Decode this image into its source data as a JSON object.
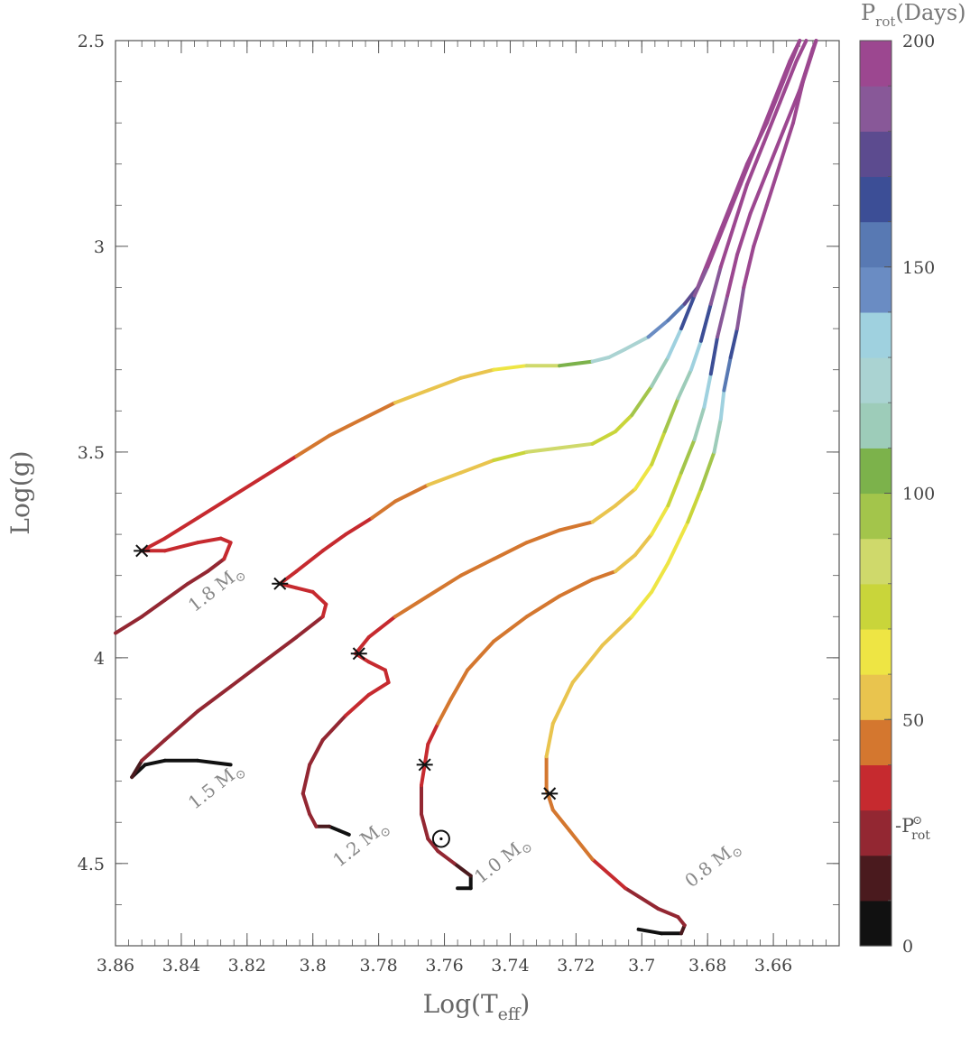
{
  "chart_data": {
    "type": "line",
    "title": "",
    "xlabel": "Log(T",
    "xlabel_sub": "eff",
    "xlabel_close": ")",
    "ylabel": "Log(g)",
    "xlim": [
      3.86,
      3.64
    ],
    "ylim": [
      2.5,
      4.7
    ],
    "x_ticks": [
      3.86,
      3.84,
      3.82,
      3.8,
      3.78,
      3.76,
      3.74,
      3.72,
      3.7,
      3.68,
      3.66
    ],
    "x_tick_labels": [
      "3.86",
      "3.84",
      "3.82",
      "3.8",
      "3.78",
      "3.76",
      "3.74",
      "3.72",
      "3.7",
      "3.68",
      "3.66"
    ],
    "y_ticks": [
      2.5,
      3,
      3.5,
      4,
      4.5
    ],
    "y_tick_labels": [
      "2.5",
      "3",
      "3.5",
      "4",
      "4.5"
    ],
    "colorbar": {
      "title": "P",
      "title_sub": "rot",
      "title_rest": "(Days)",
      "range": [
        0,
        200
      ],
      "ticks": [
        0,
        50,
        100,
        150,
        200
      ],
      "tick_labels": [
        "0",
        "50",
        "100",
        "150",
        "200"
      ],
      "colors": [
        "#111111",
        "#4a1a1e",
        "#932732",
        "#c62a2f",
        "#d4772f",
        "#e9c44e",
        "#eee544",
        "#c9d53a",
        "#cfd96b",
        "#a3c54b",
        "#7cb24b",
        "#9dccb9",
        "#aad3d2",
        "#9fd1df",
        "#6a8cc3",
        "#5879b3",
        "#3c4e96",
        "#5c4b8f",
        "#885898",
        "#9c4790"
      ],
      "solar_marker_value": 25,
      "solar_marker_label": "-P",
      "solar_marker_sub": "rot",
      "solar_marker_sup": "⊙"
    },
    "series": [
      {
        "name": "1.8 M☉",
        "label": "1.8 M",
        "points": [
          [
            3.86,
            3.94,
            20
          ],
          [
            3.852,
            3.9,
            20
          ],
          [
            3.845,
            3.86,
            22
          ],
          [
            3.838,
            3.82,
            25
          ],
          [
            3.832,
            3.79,
            28
          ],
          [
            3.827,
            3.76,
            30
          ],
          [
            3.825,
            3.72,
            30
          ],
          [
            3.828,
            3.71,
            30
          ],
          [
            3.835,
            3.72,
            30
          ],
          [
            3.845,
            3.74,
            30
          ],
          [
            3.852,
            3.74,
            30
          ],
          [
            3.845,
            3.71,
            30
          ],
          [
            3.835,
            3.66,
            30
          ],
          [
            3.825,
            3.61,
            30
          ],
          [
            3.815,
            3.56,
            30
          ],
          [
            3.805,
            3.51,
            40
          ],
          [
            3.795,
            3.46,
            40
          ],
          [
            3.785,
            3.42,
            42
          ],
          [
            3.775,
            3.38,
            50
          ],
          [
            3.765,
            3.35,
            55
          ],
          [
            3.755,
            3.32,
            58
          ],
          [
            3.745,
            3.3,
            60
          ],
          [
            3.735,
            3.29,
            78
          ],
          [
            3.725,
            3.29,
            82
          ],
          [
            3.715,
            3.28,
            120
          ],
          [
            3.71,
            3.27,
            120
          ],
          [
            3.705,
            3.25,
            120
          ],
          [
            3.698,
            3.22,
            135
          ],
          [
            3.692,
            3.18,
            150
          ],
          [
            3.687,
            3.14,
            165
          ],
          [
            3.683,
            3.1,
            185
          ],
          [
            3.678,
            3.0,
            200
          ],
          [
            3.673,
            2.9,
            200
          ],
          [
            3.668,
            2.8,
            200
          ],
          [
            3.662,
            2.7,
            200
          ],
          [
            3.657,
            2.6,
            200
          ],
          [
            3.652,
            2.5,
            200
          ]
        ]
      },
      {
        "name": "1.5 M☉",
        "label": "1.5 M",
        "points": [
          [
            3.825,
            4.26,
            0
          ],
          [
            3.835,
            4.25,
            0
          ],
          [
            3.845,
            4.25,
            0
          ],
          [
            3.851,
            4.26,
            0
          ],
          [
            3.855,
            4.29,
            0
          ],
          [
            3.852,
            4.25,
            22
          ],
          [
            3.845,
            4.2,
            22
          ],
          [
            3.835,
            4.13,
            22
          ],
          [
            3.825,
            4.07,
            23
          ],
          [
            3.815,
            4.01,
            25
          ],
          [
            3.805,
            3.95,
            28
          ],
          [
            3.797,
            3.9,
            30
          ],
          [
            3.796,
            3.87,
            30
          ],
          [
            3.8,
            3.84,
            30
          ],
          [
            3.805,
            3.83,
            30
          ],
          [
            3.81,
            3.82,
            30
          ],
          [
            3.805,
            3.79,
            30
          ],
          [
            3.797,
            3.74,
            30
          ],
          [
            3.79,
            3.7,
            35
          ],
          [
            3.782,
            3.66,
            40
          ],
          [
            3.775,
            3.62,
            42
          ],
          [
            3.765,
            3.58,
            45
          ],
          [
            3.755,
            3.55,
            55
          ],
          [
            3.745,
            3.52,
            60
          ],
          [
            3.735,
            3.5,
            80
          ],
          [
            3.725,
            3.49,
            85
          ],
          [
            3.715,
            3.48,
            85
          ],
          [
            3.708,
            3.45,
            60
          ],
          [
            3.703,
            3.41,
            80
          ],
          [
            3.697,
            3.34,
            100
          ],
          [
            3.692,
            3.27,
            125
          ],
          [
            3.688,
            3.2,
            150
          ],
          [
            3.684,
            3.12,
            175
          ],
          [
            3.68,
            3.05,
            200
          ],
          [
            3.675,
            2.95,
            200
          ],
          [
            3.67,
            2.85,
            200
          ],
          [
            3.665,
            2.75,
            200
          ],
          [
            3.66,
            2.65,
            200
          ],
          [
            3.655,
            2.55,
            200
          ],
          [
            3.652,
            2.5,
            200
          ]
        ]
      },
      {
        "name": "1.2 M☉",
        "label": "1.2 M",
        "points": [
          [
            3.789,
            4.43,
            0
          ],
          [
            3.792,
            4.42,
            0
          ],
          [
            3.795,
            4.41,
            0
          ],
          [
            3.799,
            4.41,
            20
          ],
          [
            3.801,
            4.38,
            20
          ],
          [
            3.803,
            4.33,
            22
          ],
          [
            3.801,
            4.26,
            25
          ],
          [
            3.797,
            4.2,
            28
          ],
          [
            3.79,
            4.14,
            30
          ],
          [
            3.783,
            4.09,
            30
          ],
          [
            3.777,
            4.06,
            30
          ],
          [
            3.778,
            4.03,
            30
          ],
          [
            3.783,
            4.01,
            30
          ],
          [
            3.787,
            3.99,
            30
          ],
          [
            3.783,
            3.95,
            35
          ],
          [
            3.775,
            3.9,
            40
          ],
          [
            3.765,
            3.85,
            42
          ],
          [
            3.755,
            3.8,
            45
          ],
          [
            3.745,
            3.76,
            45
          ],
          [
            3.735,
            3.72,
            45
          ],
          [
            3.725,
            3.69,
            45
          ],
          [
            3.715,
            3.67,
            48
          ],
          [
            3.708,
            3.63,
            55
          ],
          [
            3.702,
            3.59,
            58
          ],
          [
            3.697,
            3.53,
            65
          ],
          [
            3.693,
            3.45,
            80
          ],
          [
            3.689,
            3.37,
            100
          ],
          [
            3.685,
            3.3,
            125
          ],
          [
            3.682,
            3.23,
            150
          ],
          [
            3.679,
            3.14,
            175
          ],
          [
            3.676,
            3.05,
            200
          ],
          [
            3.672,
            2.95,
            200
          ],
          [
            3.668,
            2.85,
            200
          ],
          [
            3.663,
            2.75,
            200
          ],
          [
            3.658,
            2.65,
            200
          ],
          [
            3.653,
            2.55,
            200
          ],
          [
            3.65,
            2.5,
            200
          ]
        ]
      },
      {
        "name": "1.0 M☉",
        "label": "1.0 M",
        "points": [
          [
            3.756,
            4.56,
            0
          ],
          [
            3.752,
            4.56,
            0
          ],
          [
            3.752,
            4.53,
            0
          ],
          [
            3.757,
            4.5,
            20
          ],
          [
            3.762,
            4.47,
            22
          ],
          [
            3.765,
            4.44,
            25
          ],
          [
            3.767,
            4.38,
            28
          ],
          [
            3.767,
            4.31,
            30
          ],
          [
            3.766,
            4.26,
            30
          ],
          [
            3.765,
            4.21,
            30
          ],
          [
            3.762,
            4.16,
            40
          ],
          [
            3.758,
            4.1,
            42
          ],
          [
            3.753,
            4.03,
            45
          ],
          [
            3.745,
            3.96,
            45
          ],
          [
            3.735,
            3.9,
            45
          ],
          [
            3.725,
            3.85,
            45
          ],
          [
            3.715,
            3.81,
            45
          ],
          [
            3.708,
            3.79,
            45
          ],
          [
            3.702,
            3.75,
            55
          ],
          [
            3.697,
            3.7,
            60
          ],
          [
            3.692,
            3.63,
            68
          ],
          [
            3.688,
            3.55,
            80
          ],
          [
            3.684,
            3.47,
            100
          ],
          [
            3.681,
            3.39,
            120
          ],
          [
            3.679,
            3.31,
            150
          ],
          [
            3.677,
            3.22,
            175
          ],
          [
            3.674,
            3.12,
            200
          ],
          [
            3.671,
            3.02,
            200
          ],
          [
            3.667,
            2.92,
            200
          ],
          [
            3.662,
            2.82,
            200
          ],
          [
            3.657,
            2.72,
            200
          ],
          [
            3.652,
            2.62,
            200
          ],
          [
            3.648,
            2.52,
            200
          ],
          [
            3.647,
            2.5,
            200
          ]
        ]
      },
      {
        "name": "0.8 M☉",
        "label": "0.8 M",
        "points": [
          [
            3.701,
            4.66,
            0
          ],
          [
            3.694,
            4.67,
            0
          ],
          [
            3.688,
            4.67,
            0
          ],
          [
            3.687,
            4.65,
            20
          ],
          [
            3.689,
            4.63,
            22
          ],
          [
            3.695,
            4.61,
            25
          ],
          [
            3.705,
            4.56,
            30
          ],
          [
            3.715,
            4.49,
            40
          ],
          [
            3.722,
            4.42,
            40
          ],
          [
            3.727,
            4.37,
            42
          ],
          [
            3.729,
            4.32,
            45
          ],
          [
            3.729,
            4.24,
            50
          ],
          [
            3.727,
            4.16,
            52
          ],
          [
            3.721,
            4.06,
            55
          ],
          [
            3.712,
            3.97,
            58
          ],
          [
            3.703,
            3.9,
            60
          ],
          [
            3.697,
            3.84,
            62
          ],
          [
            3.692,
            3.77,
            62
          ],
          [
            3.686,
            3.67,
            70
          ],
          [
            3.682,
            3.59,
            80
          ],
          [
            3.678,
            3.5,
            100
          ],
          [
            3.676,
            3.42,
            120
          ],
          [
            3.675,
            3.35,
            150
          ],
          [
            3.673,
            3.27,
            160
          ],
          [
            3.671,
            3.2,
            175
          ],
          [
            3.669,
            3.1,
            200
          ],
          [
            3.666,
            3.0,
            200
          ],
          [
            3.662,
            2.9,
            200
          ],
          [
            3.658,
            2.8,
            200
          ],
          [
            3.654,
            2.7,
            200
          ],
          [
            3.651,
            2.6,
            200
          ],
          [
            3.647,
            2.5,
            200
          ]
        ]
      }
    ],
    "markers": {
      "zams_star": [
        [
          3.852,
          3.74
        ],
        [
          3.81,
          3.82
        ],
        [
          3.786,
          3.99
        ],
        [
          3.766,
          4.26
        ],
        [
          3.728,
          4.33
        ]
      ],
      "sun": [
        3.761,
        4.44
      ]
    },
    "track_labels": [
      {
        "text": "1.8 M",
        "at": [
          3.836,
          3.89
        ],
        "angle": -38
      },
      {
        "text": "1.5 M",
        "at": [
          3.836,
          4.37
        ],
        "angle": -38
      },
      {
        "text": "1.2 M",
        "at": [
          3.792,
          4.51
        ],
        "angle": -38
      },
      {
        "text": "1.0 M",
        "at": [
          3.749,
          4.55
        ],
        "angle": -38
      },
      {
        "text": "0.8 M",
        "at": [
          3.685,
          4.56
        ],
        "angle": -38
      }
    ],
    "solar_symbol": "⊙"
  }
}
